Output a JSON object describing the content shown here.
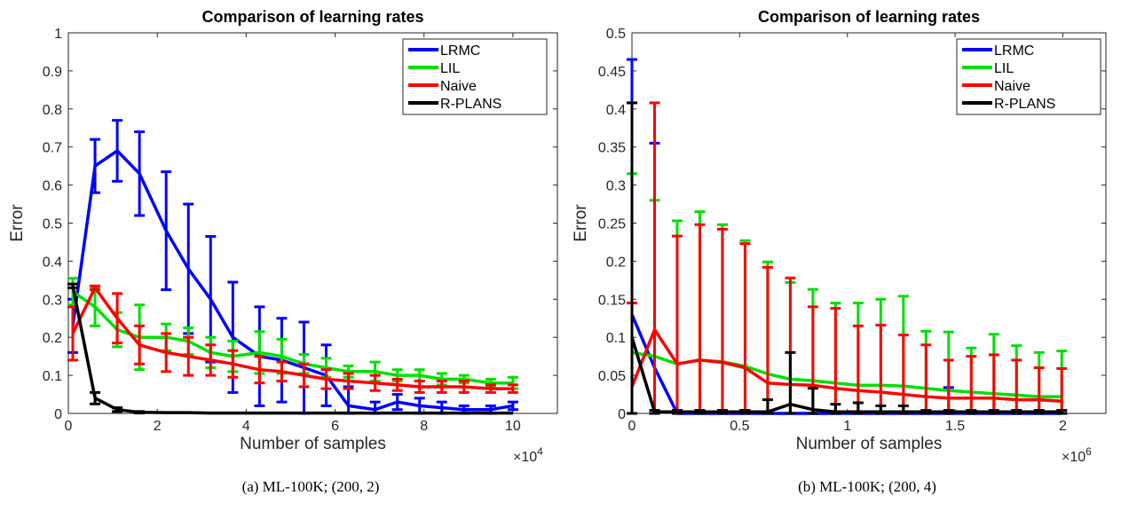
{
  "chart_data": [
    {
      "type": "line",
      "title": "Comparison of learning rates",
      "xlabel": "Number of samples",
      "ylabel": "Error",
      "x_exponent_label": "×10",
      "x_exponent": "4",
      "caption": "(a) ML-100K; (200, 2)",
      "xlim": [
        0,
        11
      ],
      "ylim": [
        0,
        1
      ],
      "xticks": [
        0,
        2,
        4,
        6,
        8,
        10
      ],
      "yticks": [
        0,
        0.1,
        0.2,
        0.3,
        0.4,
        0.5,
        0.6,
        0.7,
        0.8,
        0.9,
        1
      ],
      "xtick_labels": [
        "0",
        "2",
        "4",
        "6",
        "8",
        "10"
      ],
      "ytick_labels": [
        "0",
        "0.1",
        "0.2",
        "0.3",
        "0.4",
        "0.5",
        "0.6",
        "0.7",
        "0.8",
        "0.9",
        "1"
      ],
      "grid": false,
      "legend_position": "top-right",
      "x": [
        0.1,
        0.6,
        1.1,
        1.6,
        2.2,
        2.7,
        3.2,
        3.7,
        4.3,
        4.8,
        5.3,
        5.8,
        6.3,
        6.9,
        7.4,
        7.9,
        8.4,
        8.9,
        9.5,
        10.0
      ],
      "series": [
        {
          "name": "LRMC",
          "color": "#0000ff",
          "values": [
            0.23,
            0.65,
            0.69,
            0.63,
            0.48,
            0.38,
            0.3,
            0.2,
            0.15,
            0.14,
            0.12,
            0.1,
            0.02,
            0.01,
            0.03,
            0.02,
            0.015,
            0.01,
            0.01,
            0.02
          ],
          "errors": [
            0.07,
            0.07,
            0.08,
            0.11,
            0.155,
            0.17,
            0.165,
            0.145,
            0.13,
            0.11,
            0.12,
            0.08,
            0.05,
            0.02,
            0.02,
            0.02,
            0.015,
            0.01,
            0.01,
            0.01
          ]
        },
        {
          "name": "LIL",
          "color": "#00e000",
          "values": [
            0.32,
            0.28,
            0.22,
            0.2,
            0.2,
            0.19,
            0.16,
            0.15,
            0.16,
            0.15,
            0.13,
            0.12,
            0.11,
            0.11,
            0.1,
            0.1,
            0.09,
            0.09,
            0.08,
            0.08
          ],
          "errors": [
            0.035,
            0.05,
            0.045,
            0.085,
            0.035,
            0.035,
            0.04,
            0.04,
            0.055,
            0.045,
            0.025,
            0.025,
            0.015,
            0.025,
            0.015,
            0.015,
            0.015,
            0.01,
            0.01,
            0.015
          ]
        },
        {
          "name": "Naive",
          "color": "#ff0000",
          "values": [
            0.21,
            0.33,
            0.25,
            0.18,
            0.16,
            0.15,
            0.14,
            0.13,
            0.115,
            0.11,
            0.1,
            0.09,
            0.085,
            0.08,
            0.075,
            0.07,
            0.07,
            0.07,
            0.065,
            0.065
          ],
          "errors": [
            0.07,
            0.005,
            0.065,
            0.05,
            0.05,
            0.05,
            0.04,
            0.035,
            0.035,
            0.025,
            0.03,
            0.025,
            0.02,
            0.02,
            0.015,
            0.015,
            0.015,
            0.015,
            0.01,
            0.01
          ]
        },
        {
          "name": "R-PLANS",
          "color": "#000000",
          "values": [
            0.335,
            0.04,
            0.01,
            0.003,
            0.002,
            0.002,
            0.001,
            0.001,
            0.001,
            0.001,
            0.001,
            0.001,
            0.001,
            0.001,
            0.001,
            0.001,
            0.001,
            0.001,
            0.001,
            0.001
          ],
          "errors": [
            0.005,
            0.015,
            0.005,
            0.002,
            0.001,
            0.001,
            0.001,
            0.001,
            0.001,
            0.001,
            0.001,
            0.001,
            0.001,
            0.001,
            0.001,
            0.001,
            0.001,
            0.001,
            0.001,
            0.001
          ]
        }
      ]
    },
    {
      "type": "line",
      "title": "Comparison of learning rates",
      "xlabel": "Number of samples",
      "ylabel": "Error",
      "x_exponent_label": "×10",
      "x_exponent": "6",
      "caption": "(b) ML-100K; (200, 4)",
      "xlim": [
        0,
        2.2
      ],
      "ylim": [
        0,
        0.5
      ],
      "xticks": [
        0,
        0.5,
        1,
        1.5,
        2
      ],
      "yticks": [
        0,
        0.05,
        0.1,
        0.15,
        0.2,
        0.25,
        0.3,
        0.35,
        0.4,
        0.45,
        0.5
      ],
      "xtick_labels": [
        "0",
        "0.5",
        "1",
        "1.5",
        "2"
      ],
      "ytick_labels": [
        "0",
        "0.05",
        "0.1",
        "0.15",
        "0.2",
        "0.25",
        "0.3",
        "0.35",
        "0.4",
        "0.45",
        "0.5"
      ],
      "grid": false,
      "legend_position": "top-right",
      "x": [
        0.0,
        0.105,
        0.21,
        0.315,
        0.42,
        0.525,
        0.63,
        0.735,
        0.84,
        0.945,
        1.05,
        1.155,
        1.26,
        1.365,
        1.47,
        1.575,
        1.68,
        1.785,
        1.89,
        1.995
      ],
      "series": [
        {
          "name": "LRMC",
          "color": "#0000ff",
          "values": [
            0.13,
            0.06,
            0.0,
            0.0,
            0.0,
            0.0,
            0.0,
            0.0,
            0.0,
            0.0,
            0.0,
            0.0,
            0.0,
            0.0,
            0.0,
            0.0,
            0.0,
            0.0,
            0.0,
            0.0
          ],
          "errors": [
            0.335,
            0.295,
            0.0,
            0.0,
            0.0,
            0.0,
            0.0,
            0.0,
            0.0,
            0.0,
            0.0,
            0.0,
            0.0,
            0.0,
            0.034,
            0.0,
            0.0,
            0.0,
            0.0,
            0.0
          ]
        },
        {
          "name": "LIL",
          "color": "#00e000",
          "values": [
            0.08,
            0.075,
            0.065,
            0.07,
            0.068,
            0.062,
            0.052,
            0.045,
            0.043,
            0.04,
            0.037,
            0.037,
            0.036,
            0.033,
            0.03,
            0.028,
            0.026,
            0.024,
            0.022,
            0.022
          ],
          "errors": [
            0.235,
            0.205,
            0.188,
            0.195,
            0.18,
            0.165,
            0.147,
            0.127,
            0.12,
            0.105,
            0.108,
            0.113,
            0.118,
            0.075,
            0.077,
            0.058,
            0.078,
            0.065,
            0.058,
            0.06
          ]
        },
        {
          "name": "Naive",
          "color": "#ff0000",
          "values": [
            0.035,
            0.11,
            0.065,
            0.07,
            0.067,
            0.06,
            0.04,
            0.038,
            0.037,
            0.033,
            0.03,
            0.028,
            0.025,
            0.022,
            0.02,
            0.02,
            0.02,
            0.018,
            0.018,
            0.016
          ],
          "errors": [
            0.11,
            0.298,
            0.168,
            0.178,
            0.175,
            0.163,
            0.152,
            0.14,
            0.103,
            0.105,
            0.085,
            0.088,
            0.078,
            0.068,
            0.05,
            0.055,
            0.057,
            0.052,
            0.042,
            0.043
          ]
        },
        {
          "name": "R-PLANS",
          "color": "#000000",
          "values": [
            0.1,
            0.002,
            0.002,
            0.002,
            0.002,
            0.002,
            0.002,
            0.012,
            0.005,
            0.002,
            0.002,
            0.002,
            0.002,
            0.002,
            0.002,
            0.002,
            0.002,
            0.002,
            0.002,
            0.002
          ],
          "errors": [
            0.308,
            0.002,
            0.002,
            0.002,
            0.002,
            0.002,
            0.016,
            0.068,
            0.028,
            0.01,
            0.012,
            0.008,
            0.008,
            0.002,
            0.002,
            0.002,
            0.002,
            0.002,
            0.002,
            0.002
          ]
        }
      ]
    }
  ]
}
